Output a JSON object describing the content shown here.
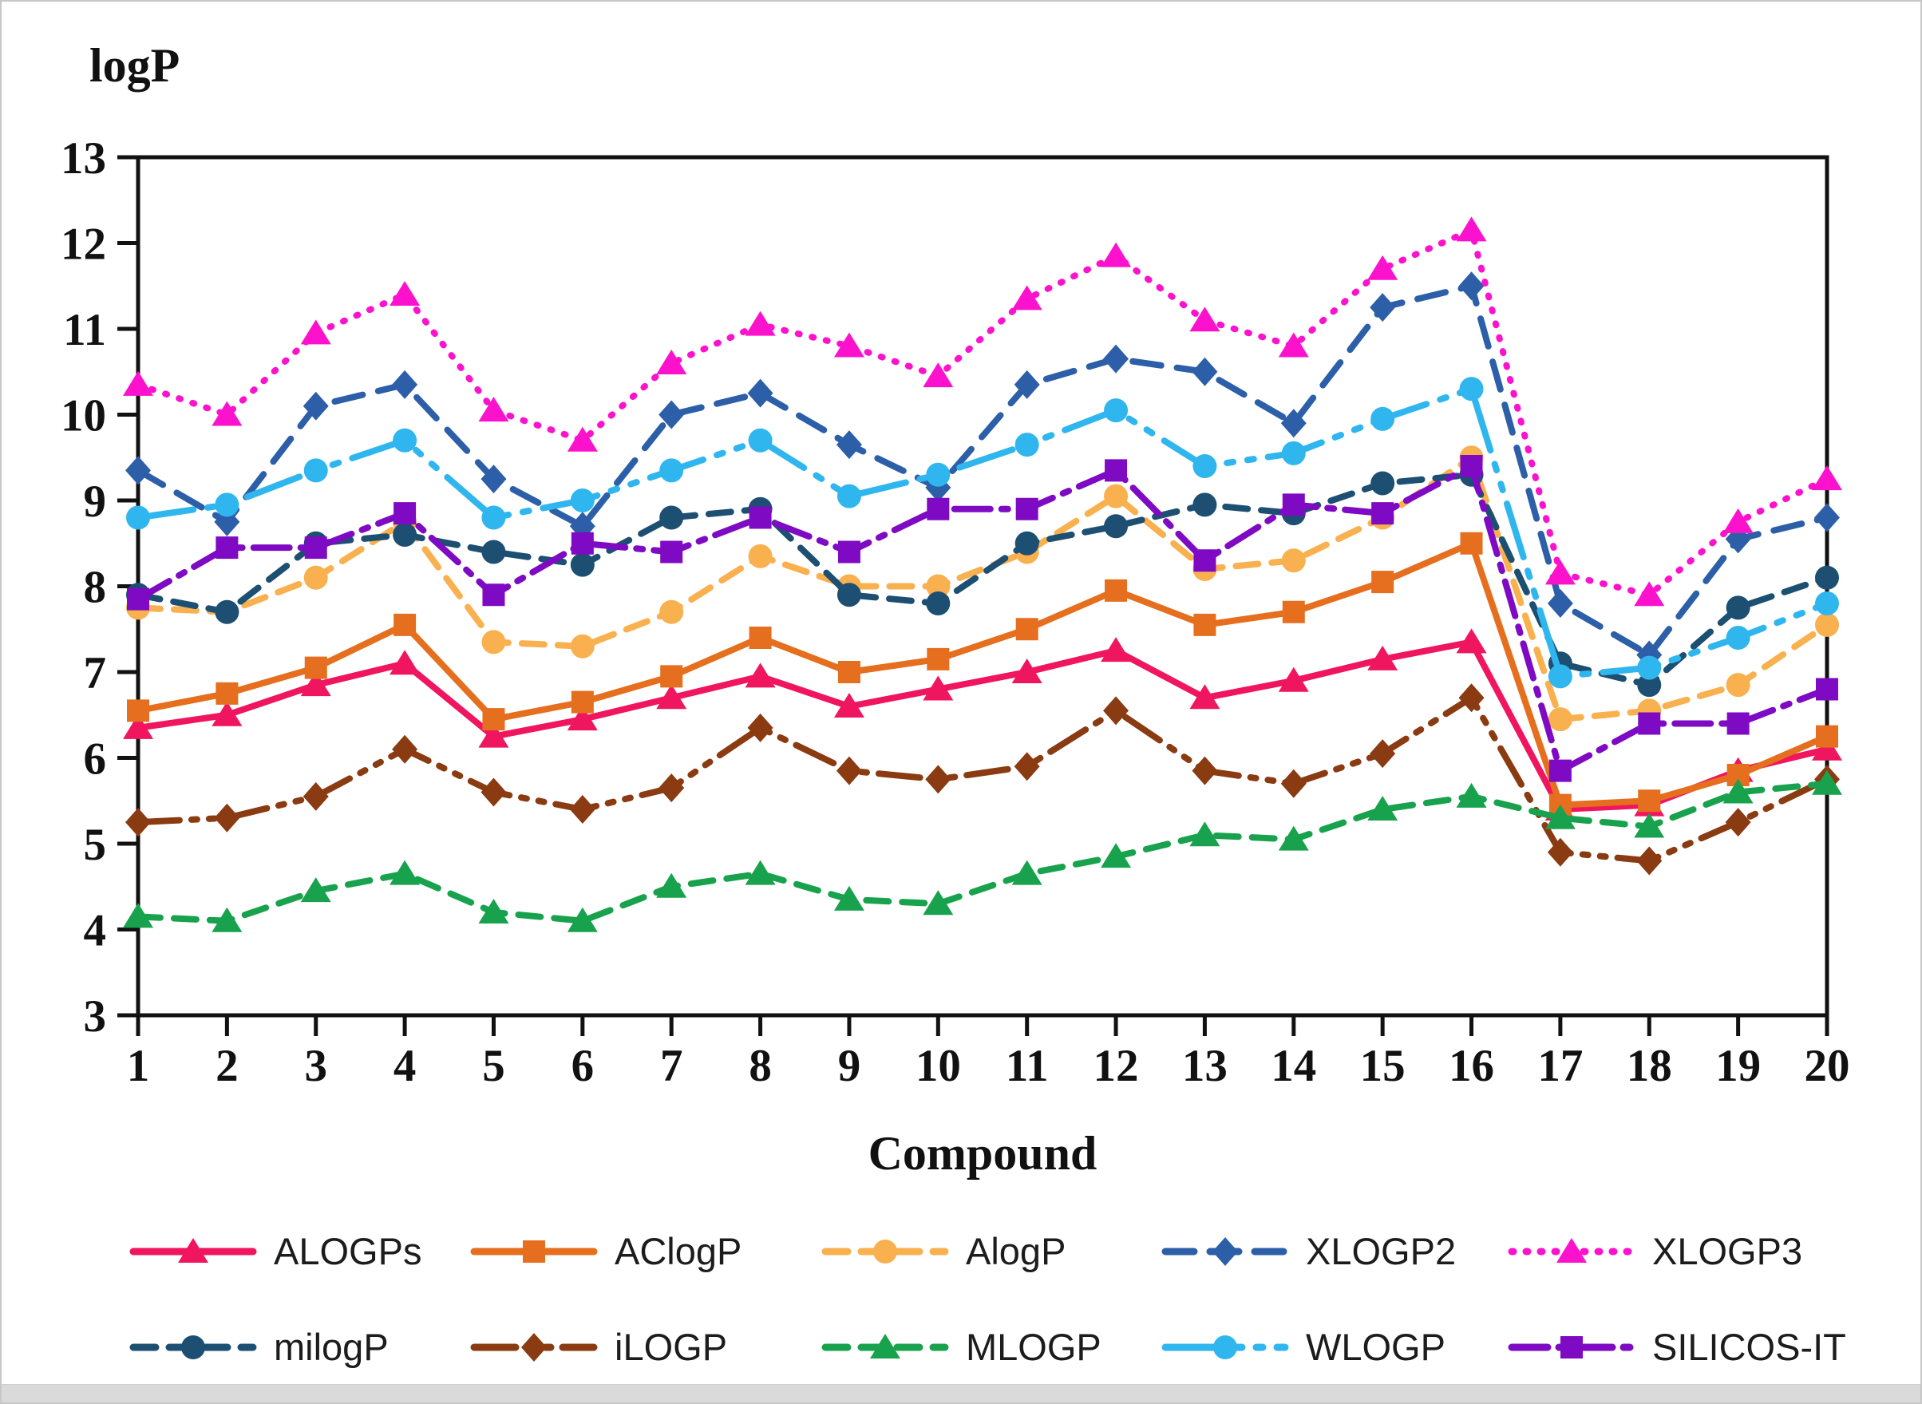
{
  "figure": {
    "title": "logP",
    "xlabel": "Compound"
  },
  "chart_data": {
    "type": "line",
    "title": "logP",
    "xlabel": "Compound",
    "ylabel": "logP",
    "ylim": [
      3,
      13
    ],
    "yticks": [
      3,
      4,
      5,
      6,
      7,
      8,
      9,
      10,
      11,
      12,
      13
    ],
    "grid": false,
    "legend_position": "bottom",
    "categories": [
      "1",
      "2",
      "3",
      "4",
      "5",
      "6",
      "7",
      "8",
      "9",
      "10",
      "11",
      "12",
      "13",
      "14",
      "15",
      "16",
      "17",
      "18",
      "19",
      "20"
    ],
    "series": [
      {
        "name": "ALOGPs",
        "color": "#f0155f",
        "marker": "triangle",
        "dash": "solid",
        "values": [
          6.35,
          6.5,
          6.85,
          7.1,
          6.25,
          6.45,
          6.7,
          6.95,
          6.6,
          6.8,
          7.0,
          7.25,
          6.7,
          6.9,
          7.15,
          7.35,
          5.4,
          5.45,
          5.85,
          6.1
        ]
      },
      {
        "name": "AClogP",
        "color": "#e56f1e",
        "marker": "square",
        "dash": "solid",
        "values": [
          6.55,
          6.75,
          7.05,
          7.55,
          6.45,
          6.65,
          6.95,
          7.4,
          7.0,
          7.15,
          7.5,
          7.95,
          7.55,
          7.7,
          8.05,
          8.5,
          5.45,
          5.5,
          5.8,
          6.25
        ]
      },
      {
        "name": "AlogP",
        "color": "#f9b04e",
        "marker": "circle",
        "dash": "dash",
        "values": [
          7.75,
          7.7,
          8.1,
          8.75,
          7.35,
          7.3,
          7.7,
          8.35,
          8.0,
          8.0,
          8.4,
          9.05,
          8.2,
          8.3,
          8.8,
          9.5,
          6.45,
          6.55,
          6.85,
          7.55
        ]
      },
      {
        "name": "XLOGP2",
        "color": "#2d5fa8",
        "marker": "diamond",
        "dash": "longdash",
        "values": [
          9.35,
          8.75,
          10.1,
          10.35,
          9.25,
          8.7,
          10.0,
          10.25,
          9.65,
          9.15,
          10.35,
          10.65,
          10.5,
          9.9,
          11.25,
          11.5,
          7.8,
          7.2,
          8.55,
          8.8
        ]
      },
      {
        "name": "XLOGP3",
        "color": "#fc12cd",
        "marker": "triangle",
        "dash": "dot",
        "values": [
          10.35,
          10.0,
          10.95,
          11.4,
          10.05,
          9.7,
          10.6,
          11.05,
          10.8,
          10.45,
          11.35,
          11.85,
          11.1,
          10.8,
          11.7,
          12.15,
          8.15,
          7.9,
          8.75,
          9.25
        ]
      },
      {
        "name": "milogP",
        "color": "#1d4f72",
        "marker": "circle",
        "dash": "dash",
        "values": [
          7.9,
          7.7,
          8.5,
          8.6,
          8.4,
          8.25,
          8.8,
          8.9,
          7.9,
          7.8,
          8.5,
          8.7,
          8.95,
          8.85,
          9.2,
          9.3,
          7.1,
          6.85,
          7.75,
          8.1
        ]
      },
      {
        "name": "iLOGP",
        "color": "#8a3b12",
        "marker": "diamond",
        "dash": "dashdotdot",
        "values": [
          5.25,
          5.3,
          5.55,
          6.1,
          5.6,
          5.4,
          5.65,
          6.35,
          5.85,
          5.75,
          5.9,
          6.55,
          5.85,
          5.7,
          6.05,
          6.7,
          4.9,
          4.8,
          5.25,
          5.75
        ]
      },
      {
        "name": "MLOGP",
        "color": "#19a24d",
        "marker": "triangle",
        "dash": "dash",
        "values": [
          4.15,
          4.1,
          4.45,
          4.65,
          4.2,
          4.1,
          4.5,
          4.65,
          4.35,
          4.3,
          4.65,
          4.85,
          5.1,
          5.05,
          5.4,
          5.55,
          5.3,
          5.2,
          5.6,
          5.7
        ]
      },
      {
        "name": "WLOGP",
        "color": "#30b6ee",
        "marker": "circle",
        "dash": "longdashdotdot",
        "values": [
          8.8,
          8.95,
          9.35,
          9.7,
          8.8,
          9.0,
          9.35,
          9.7,
          9.05,
          9.3,
          9.65,
          10.05,
          9.4,
          9.55,
          9.95,
          10.3,
          6.95,
          7.05,
          7.4,
          7.8
        ]
      },
      {
        "name": "SILICOS-IT",
        "color": "#7e0ac4",
        "marker": "square",
        "dash": "dashdot",
        "values": [
          7.85,
          8.45,
          8.45,
          8.85,
          7.9,
          8.5,
          8.4,
          8.8,
          8.4,
          8.9,
          8.9,
          9.35,
          8.3,
          8.95,
          8.85,
          9.4,
          5.85,
          6.4,
          6.4,
          6.8
        ]
      }
    ],
    "legend_rows": [
      [
        "ALOGPs",
        "AClogP",
        "AlogP",
        "XLOGP2",
        "XLOGP3"
      ],
      [
        "milogP",
        "iLOGP",
        "MLOGP",
        "WLOGP",
        "SILICOS-IT"
      ]
    ]
  }
}
